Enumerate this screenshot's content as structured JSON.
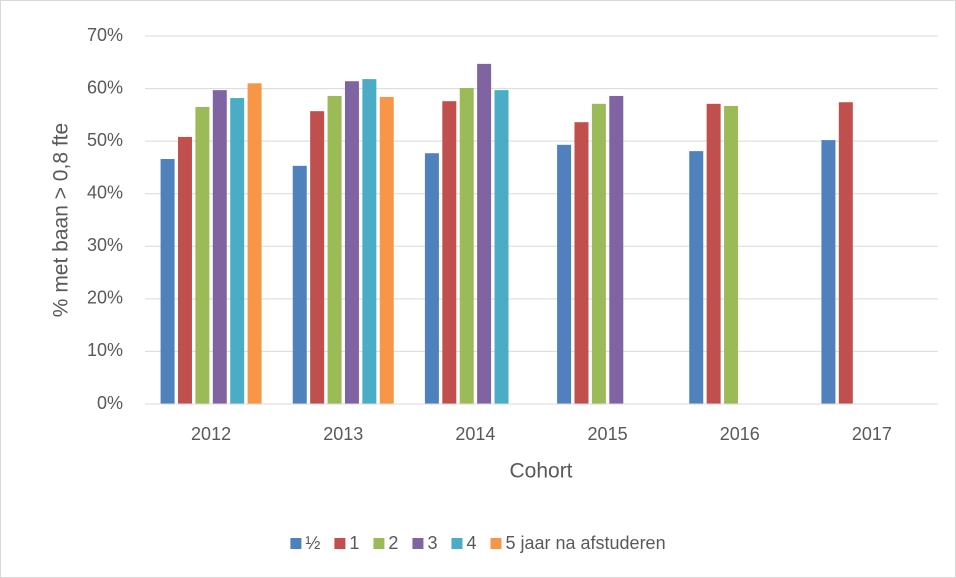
{
  "chart_data": {
    "type": "bar",
    "x_label": "Cohort",
    "y_label": "% met baan > 0,8 fte",
    "categories": [
      "2012",
      "2013",
      "2014",
      "2015",
      "2016",
      "2017"
    ],
    "series": [
      {
        "name": "½",
        "color": "#4f81bd",
        "values": [
          46.6,
          45.3,
          47.7,
          49.3,
          48.1,
          50.2
        ]
      },
      {
        "name": "1",
        "color": "#c0504d",
        "values": [
          50.8,
          55.7,
          57.6,
          53.6,
          57.1,
          57.4
        ]
      },
      {
        "name": "2",
        "color": "#9bbb59",
        "values": [
          56.5,
          58.6,
          60.1,
          57.1,
          56.7,
          null
        ]
      },
      {
        "name": "3",
        "color": "#8064a2",
        "values": [
          59.7,
          61.4,
          64.7,
          58.6,
          null,
          null
        ]
      },
      {
        "name": "4",
        "color": "#4bacc6",
        "values": [
          58.2,
          61.8,
          59.7,
          null,
          null,
          null
        ]
      },
      {
        "name": "5 jaar na afstuderen",
        "color": "#f79646",
        "values": [
          61.0,
          58.4,
          null,
          null,
          null,
          null
        ]
      }
    ],
    "ylim": [
      0,
      70
    ],
    "yticks": [
      {
        "value": 0,
        "label": "0%"
      },
      {
        "value": 10,
        "label": "10%"
      },
      {
        "value": 20,
        "label": "20%"
      },
      {
        "value": 30,
        "label": "30%"
      },
      {
        "value": 40,
        "label": "40%"
      },
      {
        "value": 50,
        "label": "50%"
      },
      {
        "value": 60,
        "label": "60%"
      },
      {
        "value": 70,
        "label": "70%"
      }
    ],
    "grid": true,
    "legend": "bottom"
  }
}
